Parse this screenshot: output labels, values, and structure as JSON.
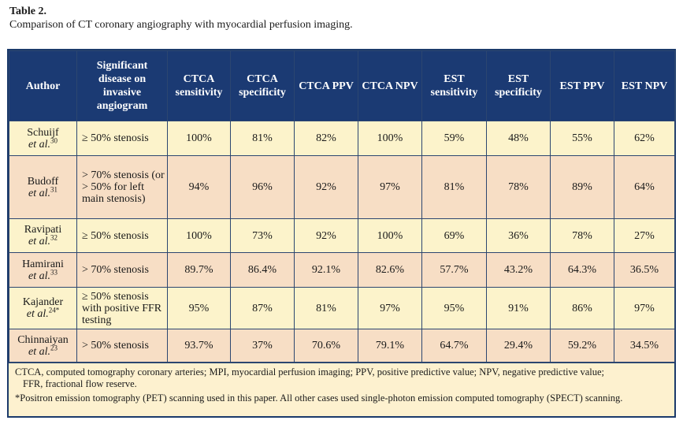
{
  "caption": {
    "label": "Table 2.",
    "title": "Comparison of CT coronary angiography with myocardial perfusion imaging."
  },
  "headers": [
    "Author",
    "Significant disease on invasive angiogram",
    "CTCA sensitivity",
    "CTCA specificity",
    "CTCA PPV",
    "CTCA NPV",
    "EST sensitivity",
    "EST specificity",
    "EST PPV",
    "EST NPV"
  ],
  "rows": [
    {
      "author": "Schuijf",
      "etal": "et al.",
      "ref": "30",
      "disease": "≥ 50% stenosis",
      "values": [
        "100%",
        "81%",
        "82%",
        "100%",
        "59%",
        "48%",
        "55%",
        "62%"
      ]
    },
    {
      "author": "Budoff",
      "etal": "et al.",
      "ref": "31",
      "disease": "> 70% stenosis (or > 50% for left main stenosis)",
      "values": [
        "94%",
        "96%",
        "92%",
        "97%",
        "81%",
        "78%",
        "89%",
        "64%"
      ]
    },
    {
      "author": "Ravipati",
      "etal": "et al.",
      "ref": "32",
      "disease": "≥ 50% stenosis",
      "values": [
        "100%",
        "73%",
        "92%",
        "100%",
        "69%",
        "36%",
        "78%",
        "27%"
      ]
    },
    {
      "author": "Hamirani",
      "etal": "et al.",
      "ref": "33",
      "disease": "> 70% stenosis",
      "values": [
        "89.7%",
        "86.4%",
        "92.1%",
        "82.6%",
        "57.7%",
        "43.2%",
        "64.3%",
        "36.5%"
      ]
    },
    {
      "author": "Kajander",
      "etal": "et al.",
      "ref": "24*",
      "disease": "≥ 50% stenosis with positive FFR testing",
      "values": [
        "95%",
        "87%",
        "81%",
        "97%",
        "95%",
        "91%",
        "86%",
        "97%"
      ]
    },
    {
      "author": "Chinnaiyan",
      "etal": "et al.",
      "ref": "23",
      "disease": "> 50% stenosis",
      "values": [
        "93.7%",
        "37%",
        "70.6%",
        "79.1%",
        "64.7%",
        "29.4%",
        "59.2%",
        "34.5%"
      ]
    }
  ],
  "footnotes": {
    "abbrev_line1": "CTCA, computed tomography coronary arteries; MPI, myocardial perfusion imaging; PPV, positive predictive value; NPV, negative predictive value;",
    "abbrev_line2": "FFR, fractional flow reserve.",
    "pet_note": "*Positron emission tomography (PET) scanning used in this paper. All other cases used single-photon emission computed tomography (SPECT) scanning."
  },
  "colors": {
    "header_bg": "#1b3a73",
    "row_light": "#fcf3cb",
    "row_dark": "#f7dec5",
    "border": "#2c4670"
  }
}
